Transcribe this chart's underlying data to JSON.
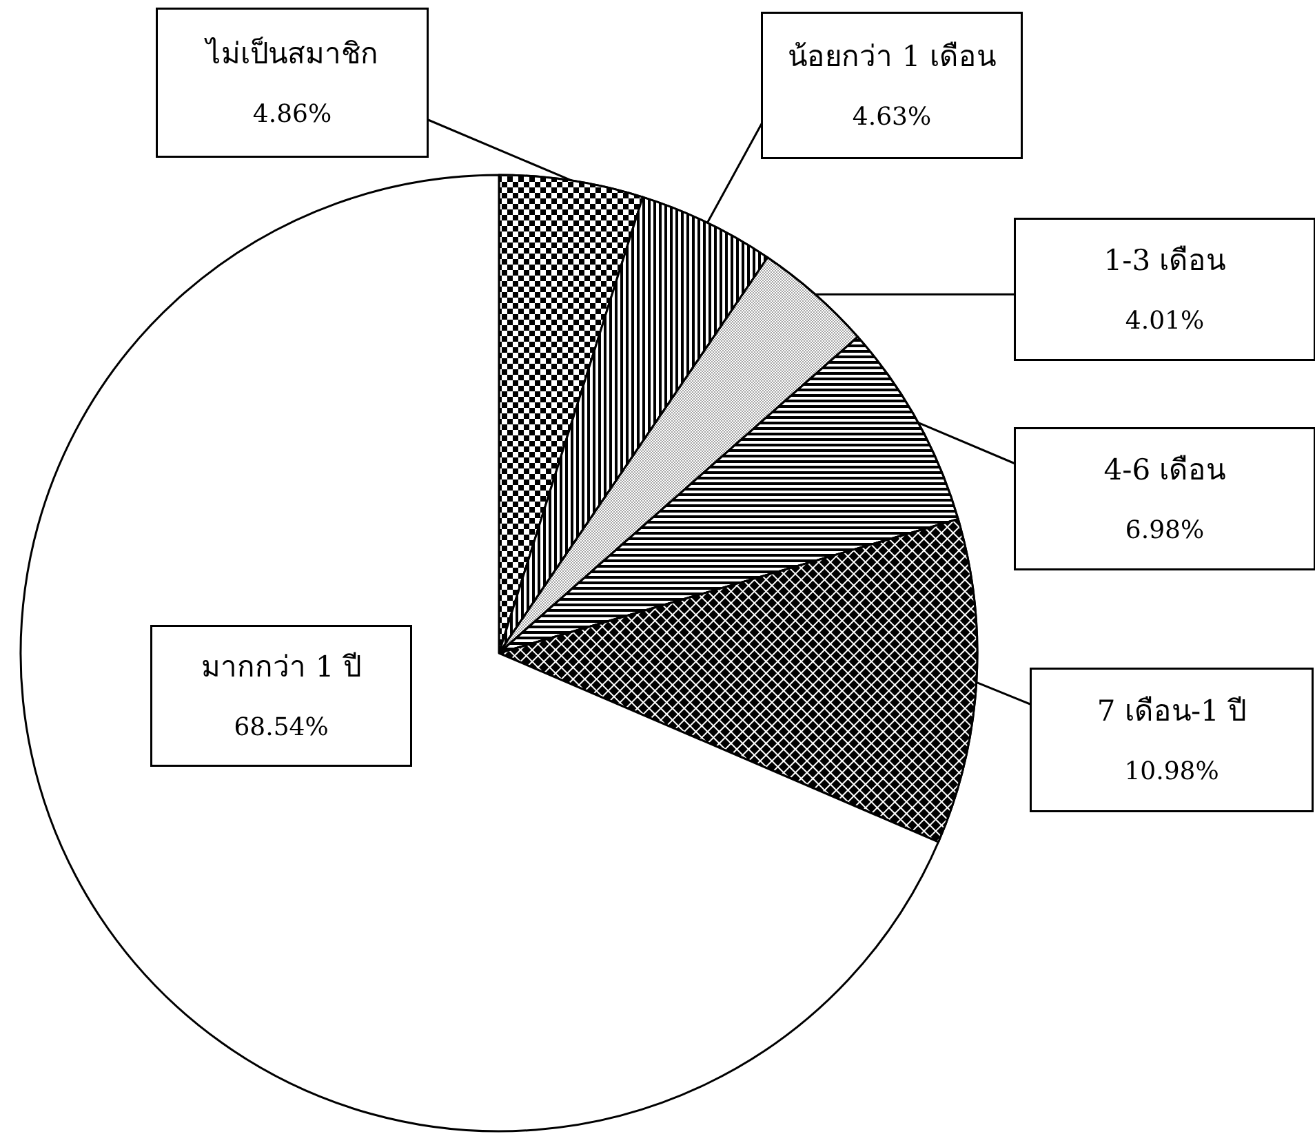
{
  "chart_data": {
    "type": "pie",
    "categories": [
      "ไม่เป็นสมาชิก",
      "น้อยกว่า 1 เดือน",
      "1-3 เดือน",
      "4-6 เดือน",
      "7 เดือน-1 ปี",
      "มากกว่า 1 ปี"
    ],
    "values": [
      4.86,
      4.63,
      4.01,
      6.98,
      10.98,
      68.54
    ],
    "value_labels": [
      "4.86%",
      "4.63%",
      "4.01%",
      "6.98%",
      "10.98%",
      "68.54%"
    ],
    "colors": [
      "#000000",
      "#000000",
      "#a6a6a6",
      "#000000",
      "#000000",
      "#ffffff"
    ]
  }
}
